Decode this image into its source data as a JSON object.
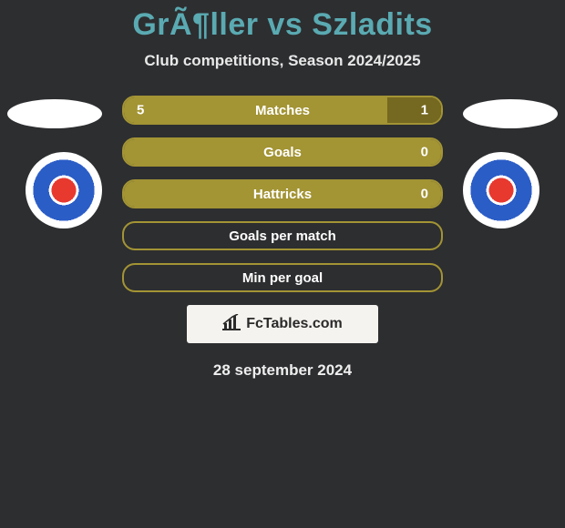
{
  "title": "GrÃ¶ller vs Szladits",
  "subtitle": "Club competitions, Season 2024/2025",
  "date": "28 september 2024",
  "watermark": "FcTables.com",
  "colors": {
    "background": "#2d2e30",
    "accent": "#5aaab2",
    "bar_fill": "#a39434",
    "bar_border": "#a39434",
    "bar_alt": "#756820",
    "text": "#ffffff"
  },
  "bars": [
    {
      "label": "Matches",
      "left": "5",
      "right": "1",
      "left_pct": 83,
      "right_pct": 17,
      "alt_right": true
    },
    {
      "label": "Goals",
      "left": "",
      "right": "0",
      "left_pct": 100,
      "right_pct": 0,
      "alt_right": false
    },
    {
      "label": "Hattricks",
      "left": "",
      "right": "0",
      "left_pct": 100,
      "right_pct": 0,
      "alt_right": false
    },
    {
      "label": "Goals per match",
      "left": "",
      "right": "",
      "left_pct": 0,
      "right_pct": 0,
      "alt_right": false
    },
    {
      "label": "Min per goal",
      "left": "",
      "right": "",
      "left_pct": 0,
      "right_pct": 0,
      "alt_right": false
    }
  ]
}
